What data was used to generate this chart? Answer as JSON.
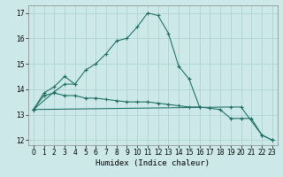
{
  "title": "",
  "xlabel": "Humidex (Indice chaleur)",
  "bg_color": "#cce8e8",
  "line_color": "#1a6b60",
  "grid_color": "#aacfcf",
  "ylim": [
    11.8,
    17.3
  ],
  "xlim": [
    -0.5,
    23.5
  ],
  "yticks": [
    12,
    13,
    14,
    15,
    16,
    17
  ],
  "xticks": [
    0,
    1,
    2,
    3,
    4,
    5,
    6,
    7,
    8,
    9,
    10,
    11,
    12,
    13,
    14,
    15,
    16,
    17,
    18,
    19,
    20,
    21,
    22,
    23
  ],
  "line1_x": [
    0,
    1,
    2,
    3,
    4,
    5,
    6,
    7,
    8,
    9,
    10,
    11,
    12,
    13,
    14,
    15,
    16
  ],
  "line1_y": [
    13.2,
    13.85,
    14.1,
    14.5,
    14.2,
    14.75,
    15.0,
    15.4,
    15.9,
    16.0,
    16.45,
    17.0,
    16.9,
    16.2,
    14.9,
    14.4,
    13.3
  ],
  "line2_x": [
    0,
    2,
    3,
    4
  ],
  "line2_y": [
    13.2,
    13.9,
    14.2,
    14.2
  ],
  "line3_x": [
    0,
    1,
    2,
    3,
    4,
    5,
    6,
    7,
    8,
    9,
    10,
    11,
    12,
    13,
    14,
    15,
    16,
    17,
    18,
    19,
    20,
    21,
    22,
    23
  ],
  "line3_y": [
    13.2,
    13.75,
    13.85,
    13.75,
    13.75,
    13.65,
    13.65,
    13.6,
    13.55,
    13.5,
    13.5,
    13.5,
    13.45,
    13.4,
    13.35,
    13.3,
    13.3,
    13.25,
    13.2,
    12.85,
    12.85,
    12.85,
    12.2,
    12.0
  ],
  "line4_x": [
    0,
    19,
    20,
    22,
    23
  ],
  "line4_y": [
    13.2,
    13.3,
    13.3,
    12.2,
    12.0
  ]
}
